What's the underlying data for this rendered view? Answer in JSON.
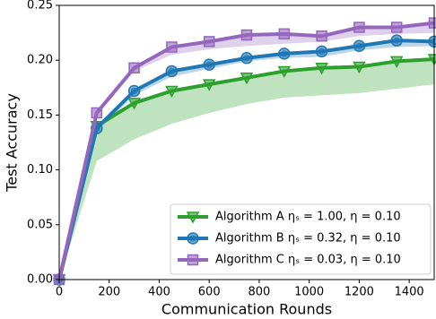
{
  "chart_data": {
    "type": "line",
    "x_label": "Communication Rounds",
    "y_label": "Test Accuracy",
    "x": [
      0,
      150,
      300,
      450,
      600,
      750,
      900,
      1050,
      1200,
      1350,
      1500
    ],
    "series": [
      {
        "name": "Algorithm A ηₛ = 1.00, η = 0.10",
        "color": "#2ca02c",
        "marker": "triangle-down",
        "values": [
          0,
          0.14,
          0.161,
          0.172,
          0.178,
          0.184,
          0.19,
          0.193,
          0.194,
          0.199,
          0.201
        ],
        "lower": [
          0,
          0.108,
          0.128,
          0.142,
          0.152,
          0.16,
          0.166,
          0.168,
          0.17,
          0.174,
          0.178
        ]
      },
      {
        "name": "Algorithm B ηₛ = 0.32, η = 0.10",
        "color": "#1f77b4",
        "marker": "circle",
        "values": [
          0,
          0.138,
          0.172,
          0.19,
          0.196,
          0.202,
          0.206,
          0.208,
          0.213,
          0.218,
          0.217
        ],
        "lower": [
          0,
          0.135,
          0.168,
          0.185,
          0.192,
          0.199,
          0.202,
          0.203,
          0.209,
          0.212,
          0.213
        ]
      },
      {
        "name": "Algorithm C ηₛ = 0.03, η = 0.10",
        "color": "#9467bd",
        "marker": "square",
        "values": [
          0,
          0.152,
          0.193,
          0.212,
          0.217,
          0.223,
          0.224,
          0.222,
          0.23,
          0.23,
          0.234
        ],
        "lower": [
          0,
          0.15,
          0.19,
          0.205,
          0.21,
          0.213,
          0.215,
          0.217,
          0.222,
          0.224,
          0.225
        ]
      }
    ],
    "xlim": [
      0,
      1500
    ],
    "xticks": [
      0,
      200,
      400,
      600,
      800,
      1000,
      1200,
      1400
    ],
    "ylim": [
      0,
      0.25
    ],
    "yticks": [
      {
        "value": 0,
        "label": "0.00"
      },
      {
        "value": 0.05,
        "label": "0.05"
      },
      {
        "value": 0.1,
        "label": "0.10"
      },
      {
        "value": 0.15,
        "label": "0.15"
      },
      {
        "value": 0.2,
        "label": "0.20"
      },
      {
        "value": 0.25,
        "label": "0.25"
      }
    ],
    "legend": "lower right",
    "grid": false
  }
}
